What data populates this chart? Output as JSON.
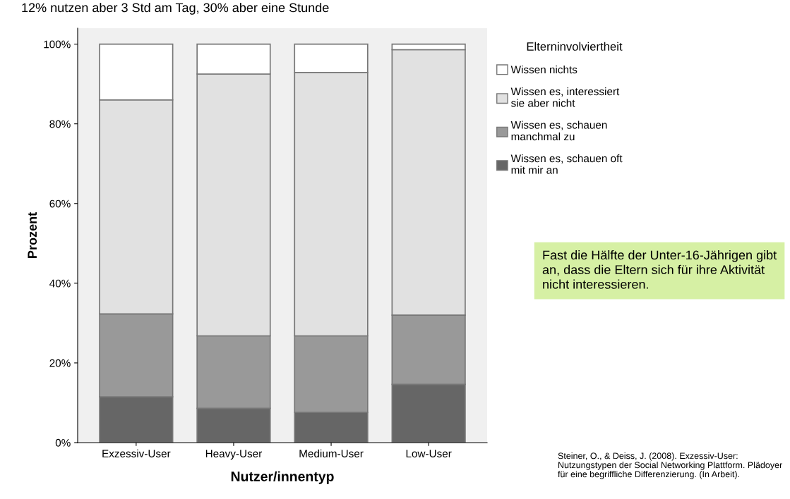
{
  "chart_data": {
    "type": "bar",
    "stacked": true,
    "xlabel": "Nutzer/innentyp",
    "ylabel": "Prozent",
    "legend_title": "Elterninvolviertheit",
    "categories": [
      "Exzessiv-User",
      "Heavy-User",
      "Medium-User",
      "Low-User"
    ],
    "series": [
      {
        "name": "Wissen es, schauen oft mit mir an",
        "color": "#666666",
        "values": [
          11.5,
          8.6,
          7.6,
          14.6
        ]
      },
      {
        "name": "Wissen es, schauen manchmal zu",
        "color": "#999999",
        "values": [
          20.8,
          18.2,
          19.2,
          17.4
        ]
      },
      {
        "name": "Wissen es, interessiert sie aber nicht",
        "color": "#e1e1e1",
        "values": [
          53.7,
          65.7,
          66.1,
          66.6
        ]
      },
      {
        "name": "Wissen nichts",
        "color": "#ffffff",
        "values": [
          14.0,
          7.5,
          7.1,
          1.4
        ]
      }
    ],
    "ylim": [
      0,
      104
    ],
    "yticks": [
      {
        "value": 0,
        "label": "0%"
      },
      {
        "value": 20,
        "label": "20%"
      },
      {
        "value": 40,
        "label": "40%"
      },
      {
        "value": 60,
        "label": "60%"
      },
      {
        "value": 80,
        "label": "80%"
      },
      {
        "value": 100,
        "label": "100%"
      }
    ],
    "grid": false,
    "legend": "right",
    "annotations": [
      "12% nutzen aber 3 Std am Tag, 30% aber eine Stunde",
      "Fast die Hälfte der Unter-16-Jährigen gibt an, dass die Eltern sich für ihre Aktivität nicht interessieren.",
      "Steiner, O., & Deiss, J. (2008). Exzessiv-User: Nutzungstypen der Social Networking Plattform. Plädoyer für eine begriffliche Differenzierung. (In Arbeit)."
    ]
  }
}
